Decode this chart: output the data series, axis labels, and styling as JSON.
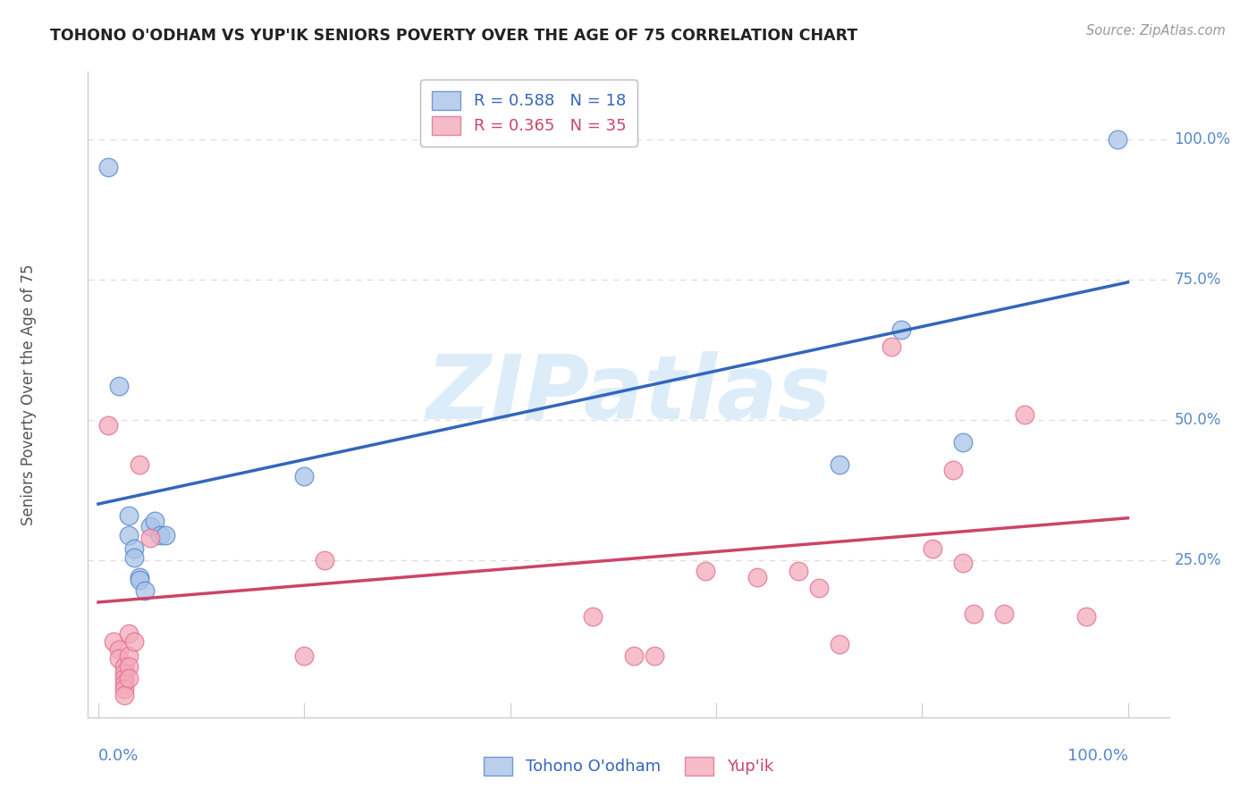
{
  "title": "TOHONO O'ODHAM VS YUP'IK SENIORS POVERTY OVER THE AGE OF 75 CORRELATION CHART",
  "source": "Source: ZipAtlas.com",
  "ylabel": "Seniors Poverty Over the Age of 75",
  "r_blue": 0.588,
  "n_blue": 18,
  "r_pink": 0.365,
  "n_pink": 35,
  "legend_blue": "Tohono O'odham",
  "legend_pink": "Yup'ik",
  "blue_fill": "#A8C4E8",
  "pink_fill": "#F4AABB",
  "blue_edge": "#5588CC",
  "pink_edge": "#E07090",
  "blue_line": "#3366BB",
  "pink_line": "#CC4466",
  "blue_scatter": [
    [
      0.01,
      0.95
    ],
    [
      0.02,
      0.56
    ],
    [
      0.03,
      0.33
    ],
    [
      0.03,
      0.295
    ],
    [
      0.035,
      0.27
    ],
    [
      0.035,
      0.255
    ],
    [
      0.04,
      0.22
    ],
    [
      0.04,
      0.215
    ],
    [
      0.045,
      0.195
    ],
    [
      0.05,
      0.31
    ],
    [
      0.055,
      0.32
    ],
    [
      0.06,
      0.295
    ],
    [
      0.065,
      0.295
    ],
    [
      0.2,
      0.4
    ],
    [
      0.72,
      0.42
    ],
    [
      0.78,
      0.66
    ],
    [
      0.84,
      0.46
    ],
    [
      0.99,
      1.0
    ]
  ],
  "pink_scatter": [
    [
      0.01,
      0.49
    ],
    [
      0.015,
      0.105
    ],
    [
      0.02,
      0.09
    ],
    [
      0.02,
      0.075
    ],
    [
      0.025,
      0.06
    ],
    [
      0.025,
      0.05
    ],
    [
      0.025,
      0.04
    ],
    [
      0.025,
      0.03
    ],
    [
      0.025,
      0.02
    ],
    [
      0.025,
      0.01
    ],
    [
      0.03,
      0.12
    ],
    [
      0.03,
      0.08
    ],
    [
      0.03,
      0.06
    ],
    [
      0.03,
      0.04
    ],
    [
      0.035,
      0.105
    ],
    [
      0.04,
      0.42
    ],
    [
      0.05,
      0.29
    ],
    [
      0.2,
      0.08
    ],
    [
      0.22,
      0.25
    ],
    [
      0.48,
      0.15
    ],
    [
      0.52,
      0.08
    ],
    [
      0.54,
      0.08
    ],
    [
      0.59,
      0.23
    ],
    [
      0.64,
      0.22
    ],
    [
      0.68,
      0.23
    ],
    [
      0.7,
      0.2
    ],
    [
      0.72,
      0.1
    ],
    [
      0.77,
      0.63
    ],
    [
      0.81,
      0.27
    ],
    [
      0.83,
      0.41
    ],
    [
      0.84,
      0.245
    ],
    [
      0.85,
      0.155
    ],
    [
      0.88,
      0.155
    ],
    [
      0.9,
      0.51
    ],
    [
      0.96,
      0.15
    ]
  ],
  "blue_intercept": 0.35,
  "blue_slope": 0.395,
  "pink_intercept": 0.175,
  "pink_slope": 0.15,
  "background": "#FFFFFF",
  "watermark": "ZIPatlas",
  "watermark_color": "#BBDDF5",
  "grid_color": "#DDDDDD",
  "axis_color": "#CCCCCC",
  "label_color": "#5588CC",
  "title_color": "#222222",
  "source_color": "#999999",
  "ylabel_color": "#555555",
  "ylim": [
    -0.03,
    1.12
  ],
  "xlim": [
    -0.01,
    1.04
  ]
}
